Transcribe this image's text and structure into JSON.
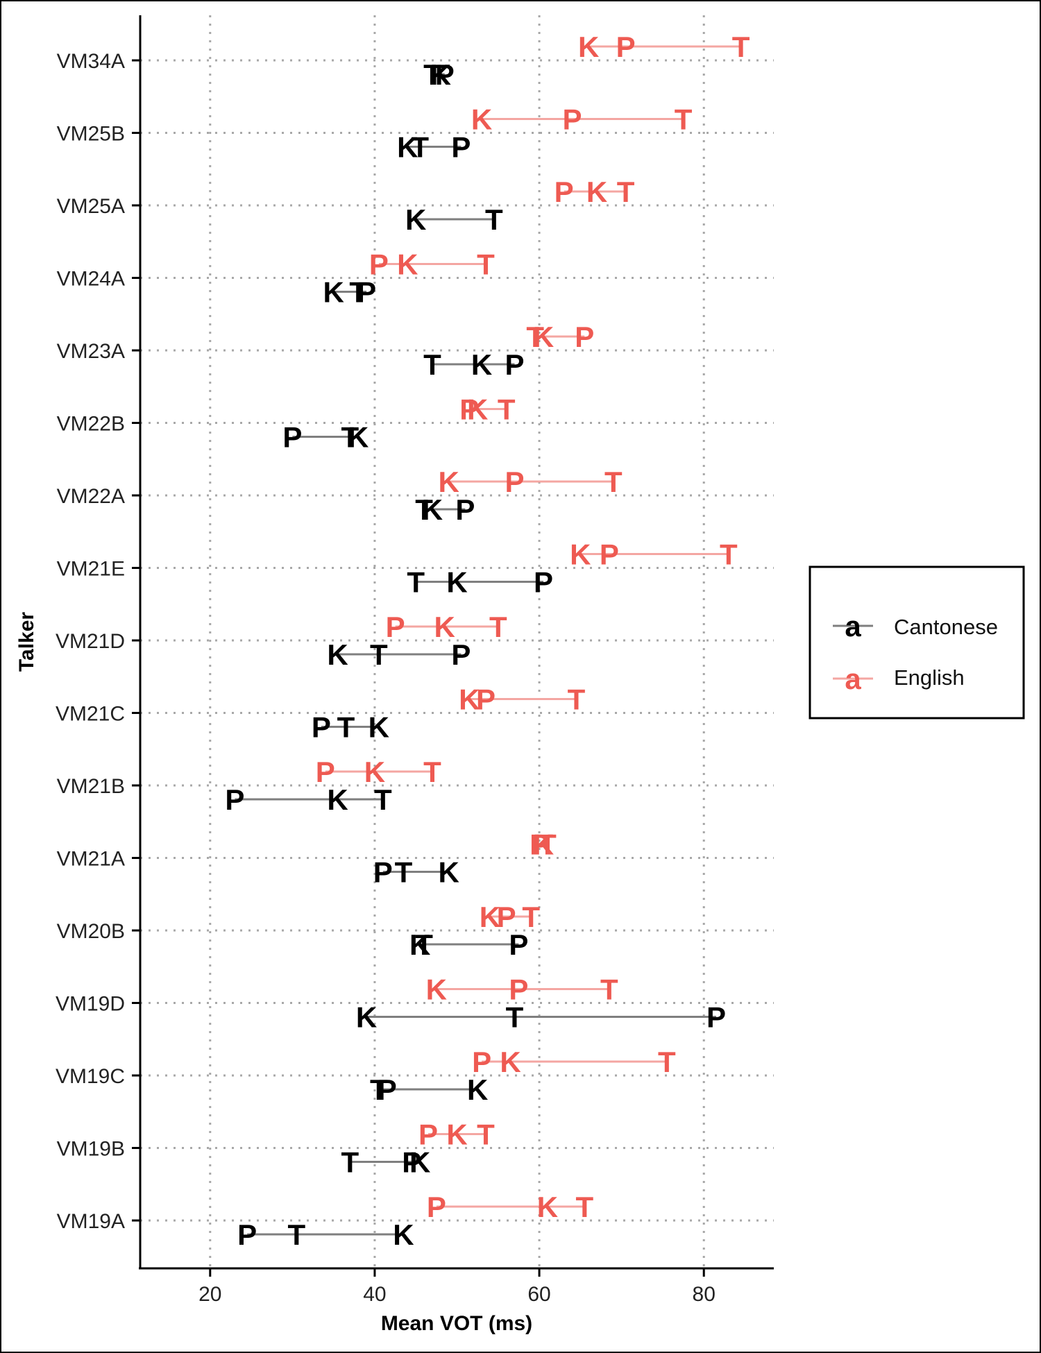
{
  "chart_data": {
    "type": "scatter",
    "subtype": "dumbbell-letters",
    "xlabel": "Mean VOT (ms)",
    "ylabel": "Talker",
    "xlim": [
      11.5,
      88.5
    ],
    "xticks": [
      20,
      40,
      60,
      80
    ],
    "grid": "dotted major gridlines",
    "legend": {
      "position": "right",
      "key_glyph": "a"
    },
    "talkers": [
      "VM34A",
      "VM25B",
      "VM25A",
      "VM24A",
      "VM23A",
      "VM22B",
      "VM22A",
      "VM21E",
      "VM21D",
      "VM21C",
      "VM21B",
      "VM21A",
      "VM20B",
      "VM19D",
      "VM19C",
      "VM19B",
      "VM19A"
    ],
    "series": [
      {
        "name": "Cantonese",
        "color": "#000000",
        "line_color": "#7f7f7f",
        "values": [
          {
            "talker": "VM34A",
            "P": 48.5,
            "T": 47.0,
            "K": 48.0
          },
          {
            "talker": "VM25B",
            "P": 50.5,
            "T": 45.5,
            "K": 44.0
          },
          {
            "talker": "VM25A",
            "P": null,
            "T": 54.5,
            "K": 45.0
          },
          {
            "talker": "VM24A",
            "P": 39.0,
            "T": 38.0,
            "K": 35.0
          },
          {
            "talker": "VM23A",
            "P": 57.0,
            "T": 47.0,
            "K": 53.0
          },
          {
            "talker": "VM22B",
            "P": 30.0,
            "T": 37.0,
            "K": 38.0
          },
          {
            "talker": "VM22A",
            "P": 51.0,
            "T": 46.0,
            "K": 47.0
          },
          {
            "talker": "VM21E",
            "P": 60.5,
            "T": 45.0,
            "K": 50.0
          },
          {
            "talker": "VM21D",
            "P": 50.5,
            "T": 40.5,
            "K": 35.5
          },
          {
            "talker": "VM21C",
            "P": 33.5,
            "T": 36.5,
            "K": 40.5
          },
          {
            "talker": "VM21B",
            "P": 23.0,
            "T": 41.0,
            "K": 35.5
          },
          {
            "talker": "VM21A",
            "P": 41.0,
            "T": 43.5,
            "K": 49.0
          },
          {
            "talker": "VM20B",
            "P": 57.5,
            "T": 46.0,
            "K": 45.5
          },
          {
            "talker": "VM19D",
            "P": 81.5,
            "T": 57.0,
            "K": 39.0
          },
          {
            "talker": "VM19C",
            "P": 41.5,
            "T": 40.5,
            "K": 52.5
          },
          {
            "talker": "VM19B",
            "P": 44.5,
            "T": 37.0,
            "K": 45.5
          },
          {
            "talker": "VM19A",
            "P": 24.5,
            "T": 30.5,
            "K": 43.5
          }
        ]
      },
      {
        "name": "English",
        "color": "#ee5a52",
        "line_color": "#f4a6a2",
        "values": [
          {
            "talker": "VM34A",
            "P": 70.5,
            "T": 84.5,
            "K": 66.0
          },
          {
            "talker": "VM25B",
            "P": 64.0,
            "T": 77.5,
            "K": 53.0
          },
          {
            "talker": "VM25A",
            "P": 63.0,
            "T": 70.5,
            "K": 67.0
          },
          {
            "talker": "VM24A",
            "P": 40.5,
            "T": 53.5,
            "K": 44.0
          },
          {
            "talker": "VM23A",
            "P": 65.5,
            "T": 59.5,
            "K": 60.5
          },
          {
            "talker": "VM22B",
            "P": 51.5,
            "T": 56.0,
            "K": 52.5
          },
          {
            "talker": "VM22A",
            "P": 57.0,
            "T": 69.0,
            "K": 49.0
          },
          {
            "talker": "VM21E",
            "P": 68.5,
            "T": 83.0,
            "K": 65.0
          },
          {
            "talker": "VM21D",
            "P": 42.5,
            "T": 55.0,
            "K": 48.5
          },
          {
            "talker": "VM21C",
            "P": 53.5,
            "T": 64.5,
            "K": 51.5
          },
          {
            "talker": "VM21B",
            "P": 34.0,
            "T": 47.0,
            "K": 40.0
          },
          {
            "talker": "VM21A",
            "P": 60.0,
            "T": 61.0,
            "K": 60.5
          },
          {
            "talker": "VM20B",
            "P": 56.0,
            "T": 59.0,
            "K": 54.0
          },
          {
            "talker": "VM19D",
            "P": 57.5,
            "T": 68.5,
            "K": 47.5
          },
          {
            "talker": "VM19C",
            "P": 53.0,
            "T": 75.5,
            "K": 56.5
          },
          {
            "talker": "VM19B",
            "P": 46.5,
            "T": 53.5,
            "K": 50.0
          },
          {
            "talker": "VM19A",
            "P": 47.5,
            "T": 65.5,
            "K": 61.0
          }
        ]
      }
    ]
  }
}
